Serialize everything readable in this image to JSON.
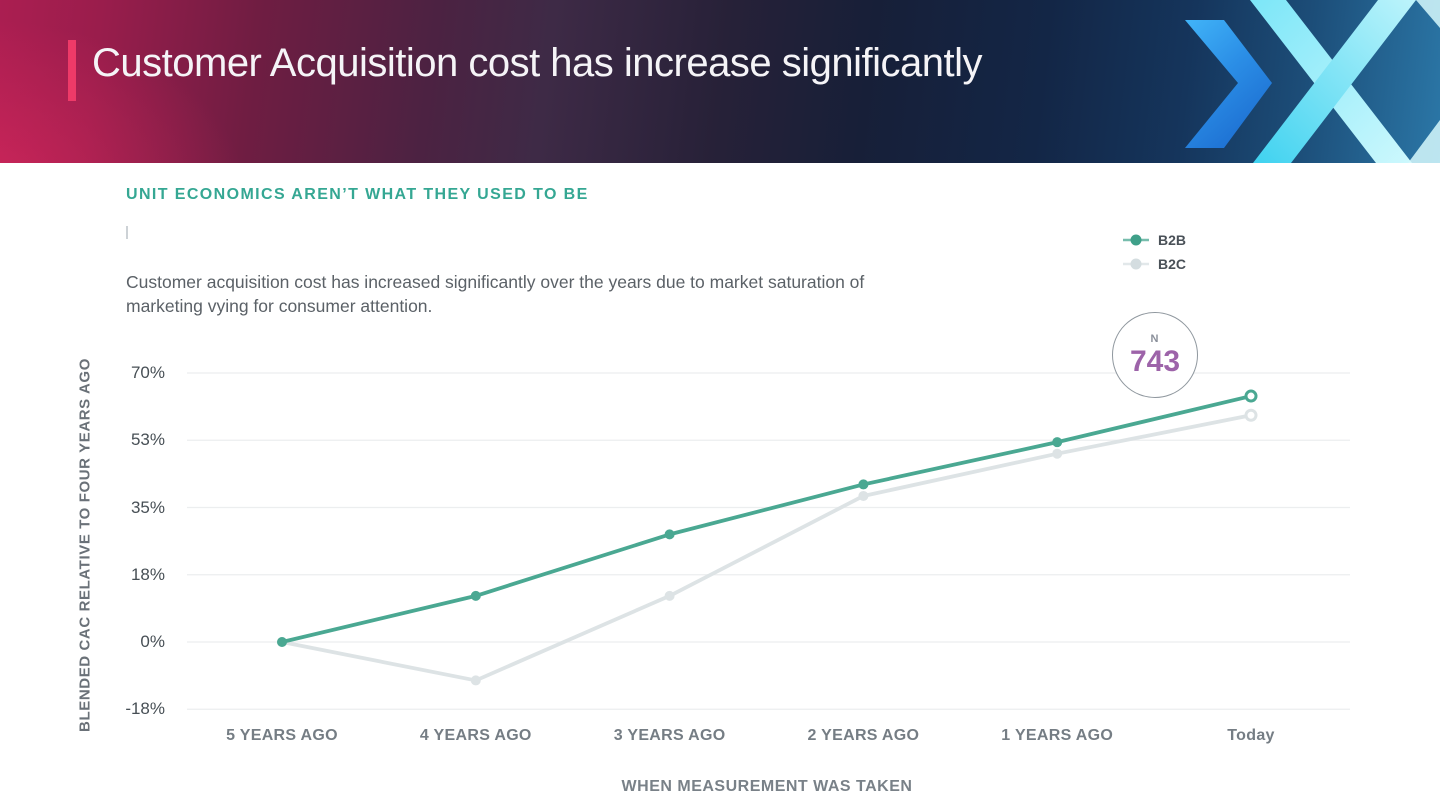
{
  "header": {
    "title": "Customer Acquisition cost has increase significantly",
    "accent_color": "#ee3a68",
    "logo_icon": "x-chevrons-logo"
  },
  "section": {
    "eyebrow": "UNIT ECONOMICS AREN’T WHAT THEY USED TO BE",
    "eyebrow_color": "#35a793",
    "body": "Customer acquisition cost has increased significantly over the years due to market saturation of marketing vying for consumer attention."
  },
  "sample_badge": {
    "label": "N",
    "value": "743",
    "value_color": "#9d63a9"
  },
  "chart_data": {
    "type": "line",
    "categories": [
      "5 YEARS AGO",
      "4 YEARS AGO",
      "3 YEARS AGO",
      "2 YEARS AGO",
      "1 YEARS AGO",
      "Today"
    ],
    "series": [
      {
        "name": "B2B",
        "color": "#4aa892",
        "values": [
          0,
          12,
          28,
          41,
          52,
          64
        ]
      },
      {
        "name": "B2C",
        "color": "#dde3e5",
        "values": [
          0,
          -10,
          12,
          38,
          49,
          59
        ]
      }
    ],
    "xlabel": "WHEN MEASUREMENT WAS TAKEN",
    "ylabel": "BLENDED CAC RELATIVE TO FOUR YEARS AGO",
    "ytick_labels": [
      "70%",
      "53%",
      "35%",
      "18%",
      "0%",
      "-18%"
    ],
    "ylim": [
      -17.5,
      70
    ],
    "grid": "horizontal",
    "gridline_color": "#eceeef",
    "legend_position": "top-right"
  }
}
